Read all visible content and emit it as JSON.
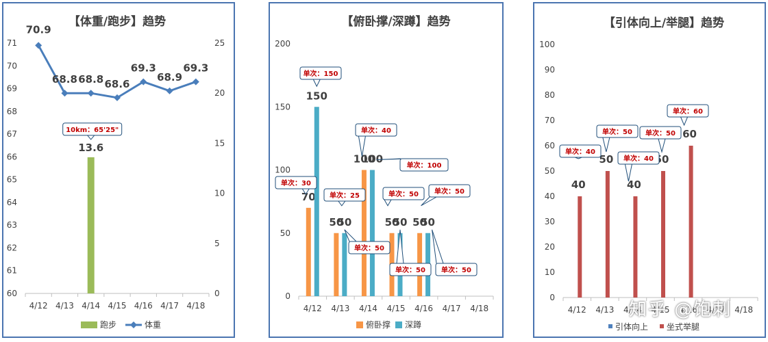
{
  "watermark": "知乎 @饱刺",
  "colors": {
    "run": "#9bbb59",
    "weight": "#4a7ebb",
    "pushup": "#f79646",
    "squat": "#4bacc6",
    "pullup": "#4f81bd",
    "situp": "#c0504d",
    "callout_border": "#1f4e79",
    "callout_text": "#c00000"
  },
  "chart_data": [
    {
      "type": "bar+line",
      "title": "【体重/跑步】趋势",
      "categories": [
        "4/12",
        "4/13",
        "4/14",
        "4/15",
        "4/16",
        "4/17",
        "4/18"
      ],
      "left_axis": {
        "min": 60,
        "max": 71,
        "ticks": [
          "60",
          "61",
          "62",
          "63",
          "64",
          "65",
          "66",
          "67",
          "68",
          "69",
          "70",
          "71"
        ]
      },
      "right_axis": {
        "min": 0,
        "max": 25,
        "ticks": [
          "0",
          "5",
          "10",
          "15",
          "20",
          "25"
        ]
      },
      "series": [
        {
          "name": "跑步",
          "kind": "bar",
          "axis": "right",
          "values": [
            null,
            null,
            13.6,
            null,
            null,
            null,
            null
          ],
          "labels": [
            "",
            "",
            "13.6",
            "",
            "",
            "",
            ""
          ]
        },
        {
          "name": "体重",
          "kind": "line",
          "axis": "left",
          "values": [
            70.9,
            68.8,
            68.8,
            68.6,
            69.3,
            68.9,
            69.3
          ],
          "labels": [
            "70.9",
            "68.8",
            "68.8",
            "68.6",
            "69.3",
            "68.9",
            "69.3"
          ]
        }
      ],
      "callouts": [
        {
          "text": "10km：65'25\""
        }
      ],
      "legend": [
        "跑步",
        "体重"
      ]
    },
    {
      "type": "bar",
      "title": "【俯卧撑/深蹲】趋势",
      "categories": [
        "4/12",
        "4/13",
        "4/14",
        "4/15",
        "4/16",
        "4/17",
        "4/18"
      ],
      "y_axis": {
        "min": 0,
        "max": 200,
        "ticks": [
          "0",
          "50",
          "100",
          "150",
          "200"
        ]
      },
      "series": [
        {
          "name": "俯卧撑",
          "values": [
            70,
            50,
            100,
            50,
            50,
            null,
            null
          ],
          "labels": [
            "70",
            "50",
            "100",
            "50",
            "50",
            "",
            ""
          ]
        },
        {
          "name": "深蹲",
          "values": [
            150,
            50,
            100,
            50,
            50,
            null,
            null
          ],
          "labels": [
            "150",
            "50",
            "100",
            "50",
            "50",
            "",
            ""
          ]
        }
      ],
      "callouts": [
        {
          "text": "单次：150"
        },
        {
          "text": "单次：30"
        },
        {
          "text": "单次：40"
        },
        {
          "text": "单次：25"
        },
        {
          "text": "单次：100"
        },
        {
          "text": "单次：50"
        },
        {
          "text": "单次：50"
        },
        {
          "text": "单次：50"
        },
        {
          "text": "单次：50"
        },
        {
          "text": "单次：50"
        }
      ],
      "legend": [
        "俯卧撑",
        "深蹲"
      ]
    },
    {
      "type": "bar",
      "title": "【引体向上/举腿】趋势",
      "categories": [
        "4/12",
        "4/13",
        "4/14",
        "4/15",
        "4/16",
        "4/17",
        "4/18"
      ],
      "y_axis": {
        "min": 0,
        "max": 100,
        "ticks": [
          "0",
          "10",
          "20",
          "30",
          "40",
          "50",
          "60",
          "70",
          "80",
          "90",
          "100"
        ]
      },
      "series": [
        {
          "name": "引体向上",
          "values": [
            null,
            null,
            null,
            null,
            null,
            null,
            null
          ],
          "labels": [
            "",
            "",
            "",
            "",
            "",
            "",
            ""
          ]
        },
        {
          "name": "坐式举腿",
          "values": [
            40,
            50,
            40,
            50,
            60,
            null,
            null
          ],
          "labels": [
            "40",
            "50",
            "40",
            "50",
            "60",
            "",
            ""
          ]
        }
      ],
      "callouts": [
        {
          "text": "单次：40"
        },
        {
          "text": "单次：50"
        },
        {
          "text": "单次：40"
        },
        {
          "text": "单次：50"
        },
        {
          "text": "单次：60"
        }
      ],
      "legend": [
        "引体向上",
        "坐式举腿"
      ]
    }
  ]
}
